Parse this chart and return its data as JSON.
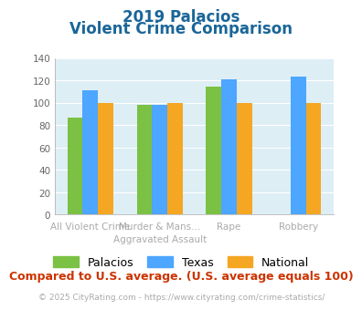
{
  "title_line1": "2019 Palacios",
  "title_line2": "Violent Crime Comparison",
  "x_labels_top": [
    "",
    "Murder & Mans...",
    "",
    ""
  ],
  "x_labels_bottom": [
    "All Violent Crime",
    "Aggravated Assault",
    "Rape",
    "Robbery"
  ],
  "series": {
    "Palacios": [
      87,
      98,
      114,
      0
    ],
    "Texas": [
      111,
      98,
      121,
      123
    ],
    "National": [
      100,
      100,
      100,
      100
    ]
  },
  "bar_colors": {
    "Palacios": "#7bc143",
    "Texas": "#4da6ff",
    "National": "#f5a623"
  },
  "ylim": [
    0,
    140
  ],
  "yticks": [
    0,
    20,
    40,
    60,
    80,
    100,
    120,
    140
  ],
  "background_color": "#ddeef5",
  "title_color": "#1a6699",
  "subtitle_note": "Compared to U.S. average. (U.S. average equals 100)",
  "footer": "© 2025 CityRating.com - https://www.cityrating.com/crime-statistics/",
  "subtitle_color": "#cc3300",
  "footer_color": "#aaaaaa",
  "title_fontsize": 12,
  "legend_fontsize": 9,
  "subtitle_fontsize": 9,
  "footer_fontsize": 6.5,
  "tick_label_fontsize": 7.5,
  "xlabel_top_fontsize": 7.5,
  "xlabel_bottom_fontsize": 7.5
}
